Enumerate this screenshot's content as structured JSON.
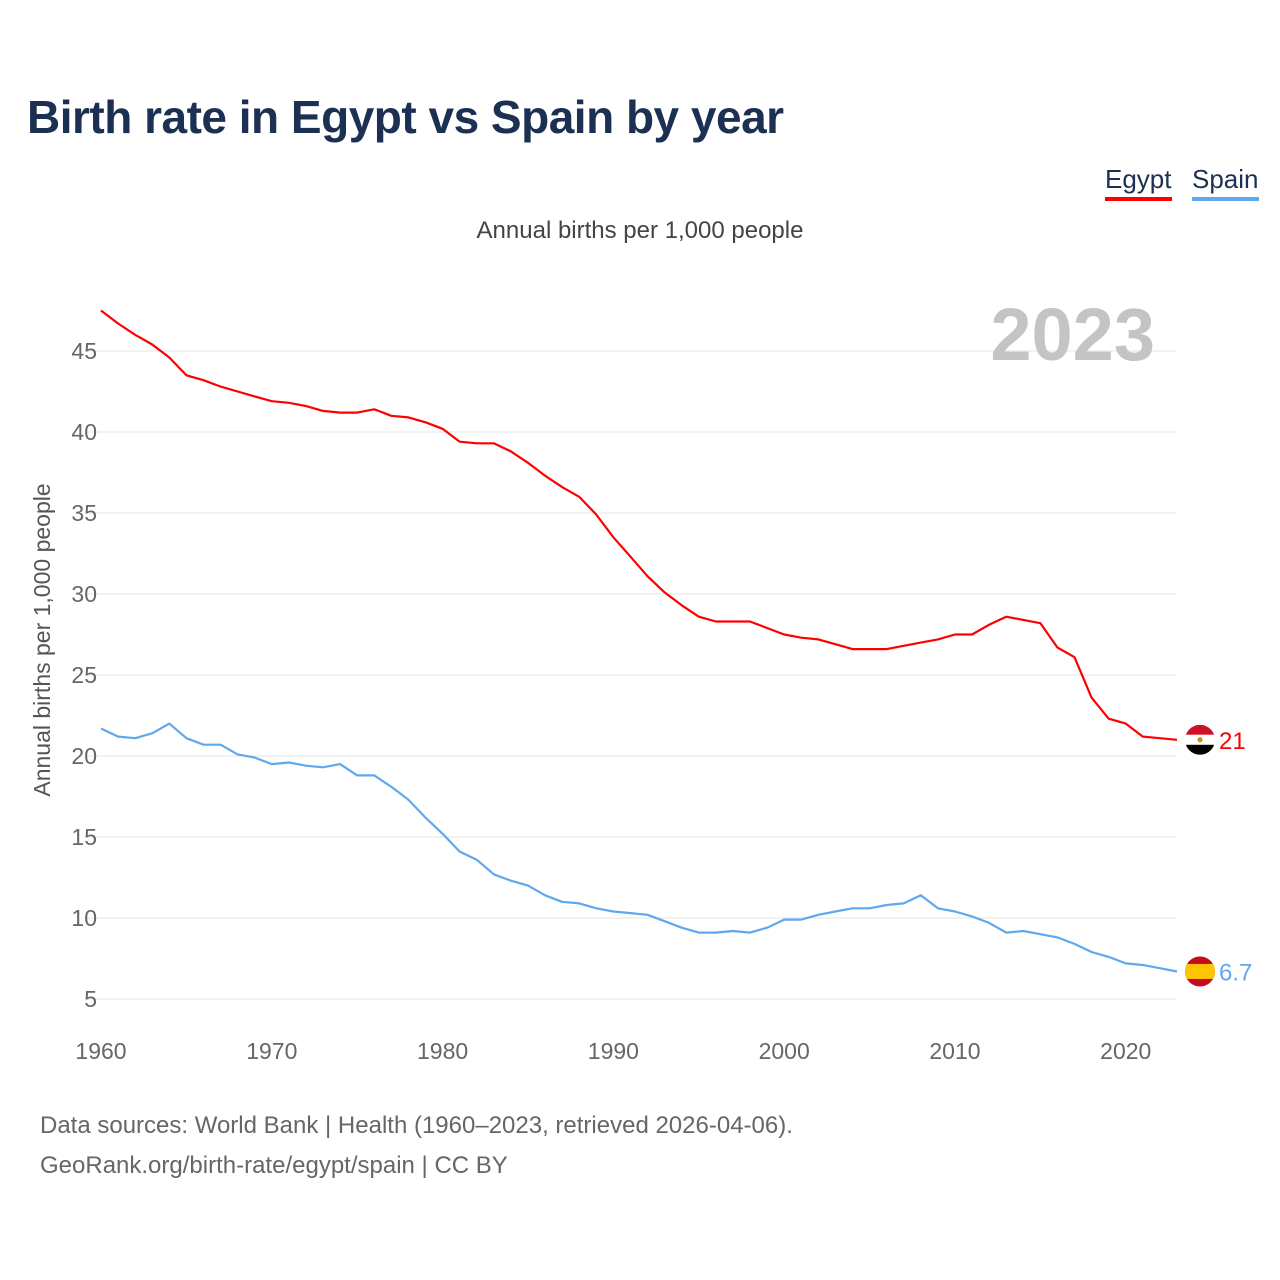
{
  "title": "Birth rate in Egypt vs Spain by year",
  "subtitle": "Annual births per 1,000 people",
  "legend": [
    {
      "label": "Egypt",
      "color": "#ff0000"
    },
    {
      "label": "Spain",
      "color": "#5ea8ee"
    }
  ],
  "year_label": "2023",
  "footer": {
    "line1": "Data sources: World Bank | Health (1960–2023, retrieved 2026-04-06).",
    "line2": "GeoRank.org/birth-rate/egypt/spain | CC BY"
  },
  "chart_data": {
    "type": "line",
    "title": "Birth rate in Egypt vs Spain by year",
    "xlabel": "",
    "ylabel": "Annual births per 1,000 people",
    "xlim": [
      1960,
      2023
    ],
    "ylim": [
      5,
      47.5
    ],
    "grid": true,
    "legend_position": "top-right",
    "x_ticks": [
      1960,
      1970,
      1980,
      1990,
      2000,
      2010,
      2020
    ],
    "y_ticks": [
      5,
      10,
      15,
      20,
      25,
      30,
      35,
      40,
      45
    ],
    "x": [
      1960,
      1961,
      1962,
      1963,
      1964,
      1965,
      1966,
      1967,
      1968,
      1969,
      1970,
      1971,
      1972,
      1973,
      1974,
      1975,
      1976,
      1977,
      1978,
      1979,
      1980,
      1981,
      1982,
      1983,
      1984,
      1985,
      1986,
      1987,
      1988,
      1989,
      1990,
      1991,
      1992,
      1993,
      1994,
      1995,
      1996,
      1997,
      1998,
      1999,
      2000,
      2001,
      2002,
      2003,
      2004,
      2005,
      2006,
      2007,
      2008,
      2009,
      2010,
      2011,
      2012,
      2013,
      2014,
      2015,
      2016,
      2017,
      2018,
      2019,
      2020,
      2021,
      2022,
      2023
    ],
    "series": [
      {
        "name": "Egypt",
        "color": "#ff0000",
        "end_label": "21",
        "values": [
          47.5,
          46.7,
          46.0,
          45.4,
          44.6,
          43.5,
          43.2,
          42.8,
          42.5,
          42.2,
          41.9,
          41.8,
          41.6,
          41.3,
          41.2,
          41.2,
          41.4,
          41.0,
          40.9,
          40.6,
          40.2,
          39.4,
          39.3,
          39.3,
          38.8,
          38.1,
          37.3,
          36.6,
          36.0,
          34.9,
          33.5,
          32.3,
          31.1,
          30.1,
          29.3,
          28.6,
          28.3,
          28.3,
          28.3,
          27.9,
          27.5,
          27.3,
          27.2,
          26.9,
          26.6,
          26.6,
          26.6,
          26.8,
          27.0,
          27.2,
          27.5,
          27.5,
          28.1,
          28.6,
          28.4,
          28.2,
          26.7,
          26.1,
          23.6,
          22.3,
          22.0,
          21.2,
          21.1,
          21.0
        ]
      },
      {
        "name": "Spain",
        "color": "#5ea8ee",
        "end_label": "6.7",
        "values": [
          21.7,
          21.2,
          21.1,
          21.4,
          22.0,
          21.1,
          20.7,
          20.7,
          20.1,
          19.9,
          19.5,
          19.6,
          19.4,
          19.3,
          19.5,
          18.8,
          18.8,
          18.1,
          17.3,
          16.2,
          15.2,
          14.1,
          13.6,
          12.7,
          12.3,
          12.0,
          11.4,
          11.0,
          10.9,
          10.6,
          10.4,
          10.3,
          10.2,
          9.8,
          9.4,
          9.1,
          9.1,
          9.2,
          9.1,
          9.4,
          9.9,
          9.9,
          10.2,
          10.4,
          10.6,
          10.6,
          10.8,
          10.9,
          11.4,
          10.6,
          10.4,
          10.1,
          9.7,
          9.1,
          9.2,
          9.0,
          8.8,
          8.4,
          7.9,
          7.6,
          7.2,
          7.1,
          6.9,
          6.7
        ]
      }
    ]
  }
}
